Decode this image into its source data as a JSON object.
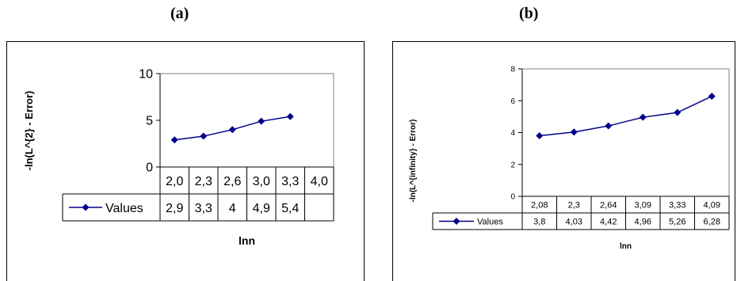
{
  "panels": [
    {
      "label": "(a)"
    },
    {
      "label": "(b)"
    }
  ],
  "colors": {
    "series": "#00008b",
    "axis": "#000000",
    "plot_border": "#808080"
  },
  "chart_data": [
    {
      "type": "line",
      "categories": [
        "2,0",
        "2,3",
        "2,6",
        "3,0",
        "3,3",
        "4,0"
      ],
      "series": [
        {
          "name": "Values",
          "values": [
            2.9,
            3.3,
            4,
            4.9,
            5.4,
            null
          ],
          "labels": [
            "2,9",
            "3,3",
            "4",
            "4,9",
            "5,4",
            ""
          ]
        }
      ],
      "ylim": [
        0,
        10
      ],
      "yticks": [
        "0",
        "5",
        "10"
      ],
      "xlabel": "lnn",
      "ylabel": "-ln(L^{2} - Error)",
      "grid": false,
      "legend": "data table"
    },
    {
      "type": "line",
      "categories": [
        "2,08",
        "2,3",
        "2,64",
        "3,09",
        "3,33",
        "4,09"
      ],
      "series": [
        {
          "name": "Values",
          "values": [
            3.8,
            4.03,
            4.42,
            4.96,
            5.26,
            6.28
          ],
          "labels": [
            "3,8",
            "4,03",
            "4,42",
            "4,96",
            "5,26",
            "6,28"
          ]
        }
      ],
      "ylim": [
        0,
        8
      ],
      "yticks": [
        "0",
        "2",
        "4",
        "6",
        "8"
      ],
      "xlabel": "lnn",
      "ylabel": "-ln(L^{infinity} - Error)",
      "grid": false,
      "legend": "data table"
    }
  ]
}
